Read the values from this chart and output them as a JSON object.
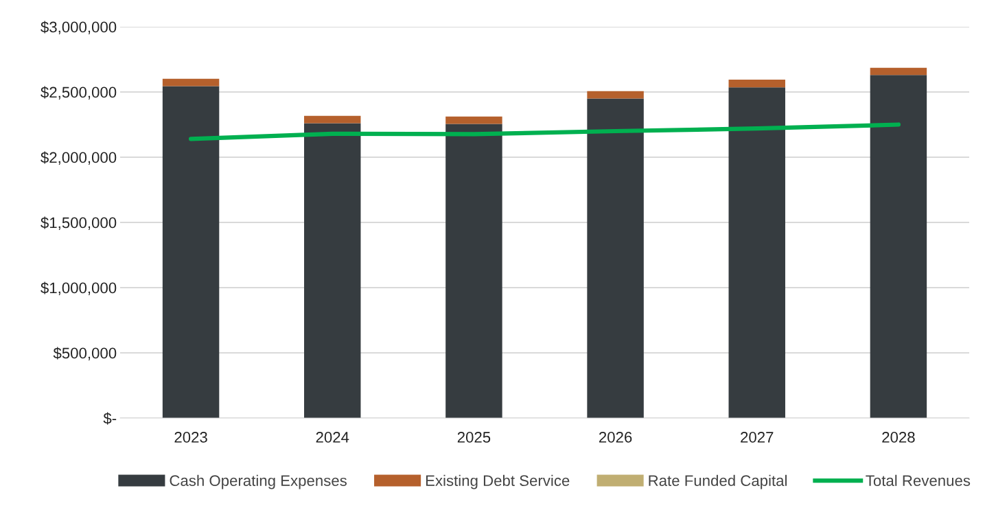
{
  "chart_data": {
    "type": "bar",
    "stacked": true,
    "categories": [
      "2023",
      "2024",
      "2025",
      "2026",
      "2027",
      "2028"
    ],
    "series": [
      {
        "name": "Cash Operating Expenses",
        "color": "#363c40",
        "values": [
          2545000,
          2260000,
          2255000,
          2450000,
          2535000,
          2630000
        ]
      },
      {
        "name": "Existing Debt Service",
        "color": "#b5602c",
        "values": [
          56000,
          57000,
          57000,
          57000,
          60000,
          56000
        ]
      },
      {
        "name": "Rate Funded Capital",
        "color": "#c0ae72",
        "values": [
          0,
          0,
          0,
          0,
          0,
          0
        ]
      },
      {
        "name": "Total Revenues",
        "type": "line",
        "color": "#00b050",
        "values": [
          2140000,
          2180000,
          2177000,
          2200000,
          2220000,
          2250000
        ]
      }
    ],
    "ylim": [
      0,
      3000000
    ],
    "yticks": [
      {
        "value": 0,
        "label": "$-"
      },
      {
        "value": 500000,
        "label": "$500,000"
      },
      {
        "value": 1000000,
        "label": "$1,000,000"
      },
      {
        "value": 1500000,
        "label": "$1,500,000"
      },
      {
        "value": 2000000,
        "label": "$2,000,000"
      },
      {
        "value": 2500000,
        "label": "$2,500,000"
      },
      {
        "value": 3000000,
        "label": "$3,000,000"
      }
    ],
    "grid": "y",
    "legend": "bottom",
    "marker": "none",
    "line_style": "solid"
  }
}
